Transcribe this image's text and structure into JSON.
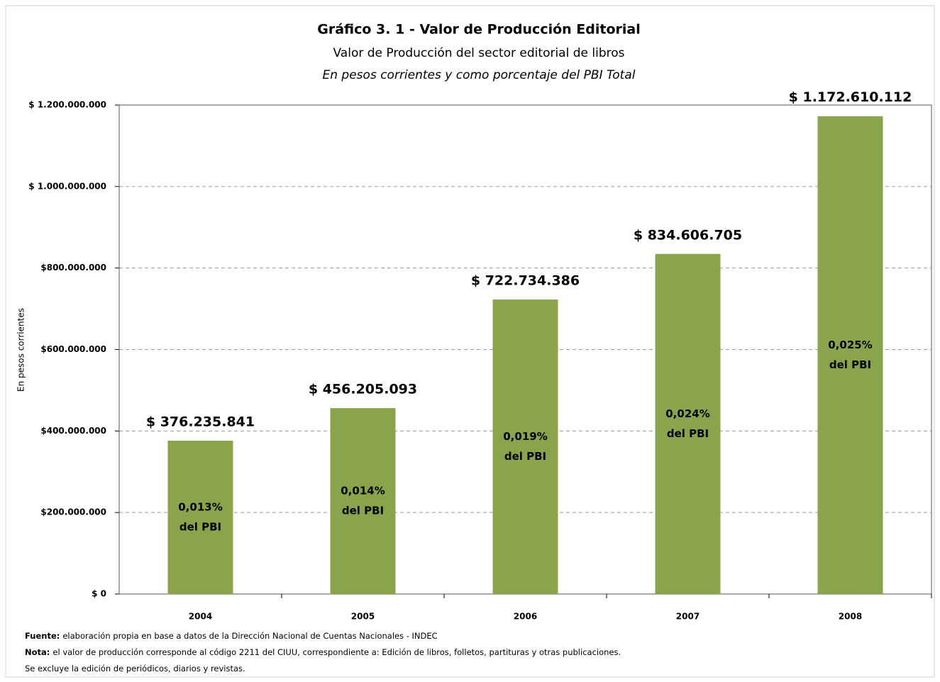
{
  "chart_data": {
    "type": "bar",
    "title": "Gráfico 3. 1 - Valor de Producción Editorial",
    "subtitle": "Valor de Producción del sector editorial de libros",
    "subtitle2": "En pesos corrientes y como porcentaje del PBI Total",
    "y_label": "En pesos corrientes",
    "categories": [
      "2004",
      "2005",
      "2006",
      "2007",
      "2008"
    ],
    "values": [
      376235841,
      456205093,
      722734386,
      834606705,
      1172610112
    ],
    "value_labels": [
      "$ 376.235.841",
      "$ 456.205.093",
      "$ 722.734.386",
      "$ 834.606.705",
      "$ 1.172.610.112"
    ],
    "share_labels": [
      "0,013%",
      "0,014%",
      "0,019%",
      "0,024%",
      "0,025%"
    ],
    "share_suffix": "del PBI",
    "color": "#8aa44c",
    "ylim": [
      0,
      1200000000
    ],
    "yticks": [
      {
        "value": 0,
        "label": "$ 0"
      },
      {
        "value": 200000000,
        "label": "$200.000.000"
      },
      {
        "value": 400000000,
        "label": "$400.000.000"
      },
      {
        "value": 600000000,
        "label": "$600.000.000"
      },
      {
        "value": 800000000,
        "label": "$800.000.000"
      },
      {
        "value": 1000000000,
        "label": "$ 1.000.000.000"
      },
      {
        "value": 1200000000,
        "label": "$ 1.200.000.000"
      }
    ],
    "grid": true,
    "notes": [
      {
        "label": "Fuente:",
        "text": "elaboración propia en base a datos de la Dirección Nacional de Cuentas Nacionales - INDEC"
      },
      {
        "label": "Nota:",
        "text": "el valor de producción corresponde al código 2211 del CIUU, correspondiente a:  Edición de libros, folletos, partituras y otras publicaciones."
      },
      {
        "label": "",
        "text": "Se excluye la edición de periódicos, diarios y revistas."
      }
    ]
  }
}
